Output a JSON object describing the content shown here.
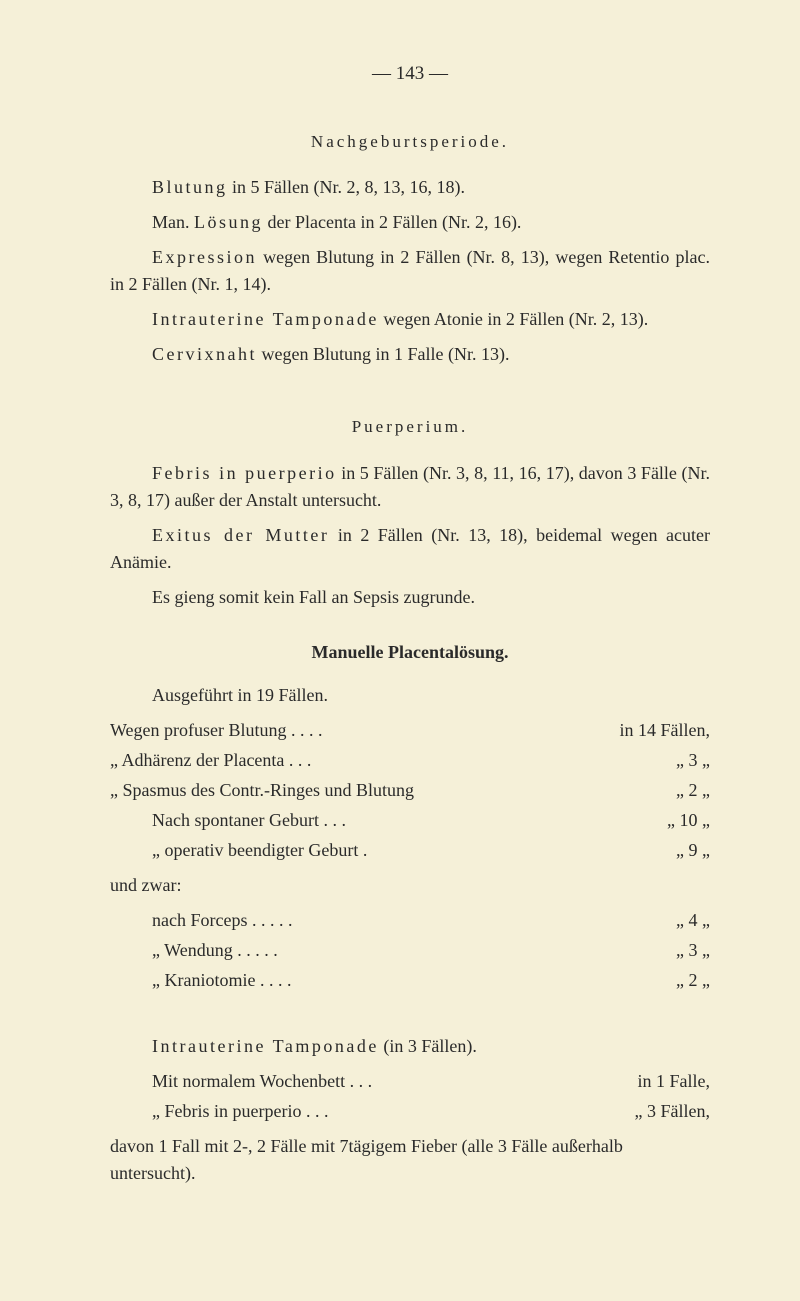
{
  "page_number": "— 143 —",
  "heading_nachgeburt": "Nachgeburtsperiode.",
  "p1_a": "Blutung",
  "p1_b": " in 5 Fällen (Nr. 2, 8, 13, 16, 18).",
  "p2_a": "Man. ",
  "p2_b": "Lösung",
  "p2_c": " der Placenta in 2 Fällen (Nr. 2, 16).",
  "p3_a": "Expression",
  "p3_b": " wegen Blutung in 2 Fällen (Nr. 8, 13), wegen Retentio plac. in 2 Fällen (Nr. 1, 14).",
  "p4_a": "Intrauterine Tamponade",
  "p4_b": " wegen Atonie in 2 Fällen (Nr. 2, 13).",
  "p5_a": "Cervixnaht",
  "p5_b": " wegen Blutung in 1 Falle (Nr. 13).",
  "heading_puerperium": "Puerperium.",
  "p6_a": "Febris in puerperio",
  "p6_b": " in 5 Fällen (Nr. 3, 8, 11, 16, 17), davon 3 Fälle (Nr. 3, 8, 17) außer der Anstalt untersucht.",
  "p7_a": "Exitus der Mutter",
  "p7_b": " in 2 Fällen (Nr. 13, 18), beidemal wegen acuter Anämie.",
  "p8": "Es gieng somit kein Fall an Sepsis zugrunde.",
  "heading_manuelle": "Manuelle Placentalösung.",
  "p9": "Ausgeführt in 19 Fällen.",
  "rows": [
    {
      "label": "Wegen profuser Blutung    .      .      .      .",
      "value": "in 14 Fällen,"
    },
    {
      "label": "    „      Adhärenz der Placenta         .      .      .",
      "value": "„    3      „"
    },
    {
      "label": "    „      Spasmus des Contr.-Ringes und Blutung",
      "value": "„    2      „"
    },
    {
      "label": "Nach spontaner Geburt     .      .      .",
      "value": "„  10      „"
    },
    {
      "label": "    „    operativ beendigter Geburt      .",
      "value": "„    9      „"
    }
  ],
  "und_zwar": "und zwar:",
  "rows2": [
    {
      "label": "nach Forceps      .      .      .      .      .",
      "value": "„    4      „"
    },
    {
      "label": "   „    Wendung .      .      .      .      .",
      "value": "„    3      „"
    },
    {
      "label": "   „    Kraniotomie          .      .      .      .",
      "value": "„    2      „"
    }
  ],
  "p10_a": "Intrauterine Tamponade",
  "p10_b": " (in 3 Fällen).",
  "rows3": [
    {
      "label": "Mit normalem Wochenbett  .      .      .",
      "value": "in    1 Falle,"
    },
    {
      "label": "  „   Febris in puerperio       .      .      .",
      "value": "„    3 Fällen,"
    }
  ],
  "p11": "davon 1 Fall mit 2-, 2 Fälle mit 7tägigem Fieber (alle 3 Fälle außerhalb untersucht)."
}
